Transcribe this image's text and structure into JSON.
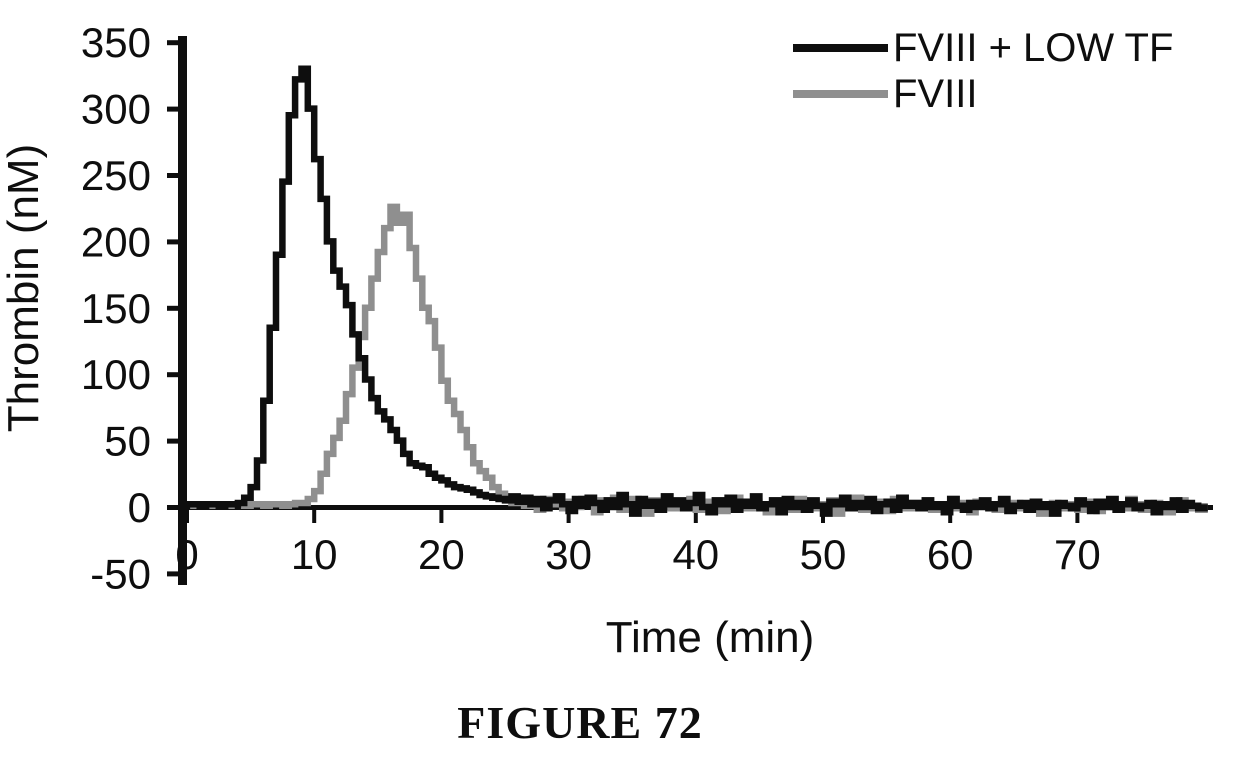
{
  "figure": {
    "caption": "FIGURE 72"
  },
  "legend": {
    "position": "top-right"
  },
  "chart_data": {
    "type": "line",
    "line_style": "step",
    "title": "",
    "xlabel": "Time (min)",
    "ylabel": "Thrombin (nM)",
    "xlim": [
      0,
      80
    ],
    "ylim": [
      -50,
      350
    ],
    "xticks": [
      0,
      10,
      20,
      30,
      40,
      50,
      60,
      70
    ],
    "yticks": [
      -50,
      0,
      50,
      100,
      150,
      200,
      250,
      300,
      350
    ],
    "grid": false,
    "axis_color": "#0e0e0e",
    "x_start": 0,
    "x_step": 0.5,
    "series": [
      {
        "name": "FVIII + LOW TF",
        "color": "#0e0e0e",
        "values": [
          2,
          2,
          1,
          2,
          2,
          1,
          2,
          2,
          3,
          7,
          15,
          35,
          80,
          135,
          190,
          245,
          295,
          322,
          330,
          300,
          262,
          232,
          200,
          178,
          166,
          152,
          130,
          112,
          96,
          82,
          72,
          66,
          58,
          50,
          40,
          33,
          31,
          30,
          25,
          22,
          20,
          17,
          15,
          14,
          13,
          11,
          9,
          8,
          7,
          6,
          5,
          8,
          4,
          7,
          2,
          6,
          -1,
          5,
          8,
          2,
          -3,
          6,
          1,
          7,
          3,
          -2,
          5,
          0,
          9,
          2,
          -5,
          6,
          1,
          4,
          -2,
          8,
          2,
          5,
          -1,
          3,
          9,
          0,
          -4,
          5,
          2,
          7,
          -2,
          4,
          1,
          8,
          -1,
          2,
          5,
          -4,
          6,
          0,
          3,
          -2,
          5,
          1,
          -5,
          4,
          2,
          7,
          -1,
          3,
          0,
          6,
          -3,
          2,
          4,
          -2,
          7,
          1,
          3,
          -1,
          5,
          0,
          2,
          -4,
          6,
          1,
          -2,
          3,
          0,
          5,
          -1,
          2,
          6,
          -3,
          1,
          3,
          -2,
          4,
          0,
          2,
          -5,
          3,
          1,
          -1,
          5,
          2,
          -3,
          4,
          0,
          6,
          -2,
          2,
          5,
          -1,
          1,
          3,
          -4,
          2,
          0,
          5,
          -2,
          3,
          1,
          -1,
          2
        ]
      },
      {
        "name": "FVIII",
        "color": "#8f8f8f",
        "values": [
          2,
          1,
          2,
          2,
          1,
          2,
          1,
          2,
          2,
          1,
          2,
          2,
          1,
          2,
          2,
          1,
          2,
          3,
          3,
          6,
          12,
          25,
          40,
          52,
          65,
          85,
          105,
          128,
          150,
          172,
          192,
          210,
          226,
          214,
          220,
          195,
          172,
          150,
          140,
          120,
          95,
          80,
          70,
          58,
          45,
          33,
          27,
          22,
          15,
          10,
          6,
          3,
          7,
          1,
          5,
          -2,
          6,
          2,
          8,
          -1,
          4,
          0,
          6,
          2,
          -4,
          5,
          1,
          7,
          -2,
          3,
          6,
          0,
          -5,
          5,
          2,
          8,
          -1,
          3,
          1,
          6,
          -2,
          4,
          0,
          5,
          -3,
          2,
          7,
          1,
          -1,
          4,
          2,
          -4,
          5,
          0,
          3,
          -2,
          6,
          1,
          4,
          -1,
          2,
          5,
          -5,
          3,
          1,
          7,
          -2,
          2,
          0,
          4,
          -3,
          6,
          2,
          -1,
          3,
          1,
          5,
          -2,
          2,
          0,
          6,
          -1,
          3,
          -4,
          4,
          1,
          2,
          -2,
          5,
          0,
          3,
          -1,
          1,
          4,
          -5,
          2,
          3,
          -1,
          0,
          2,
          -2,
          4,
          1,
          -3,
          3,
          0,
          2,
          -1,
          6,
          2,
          -2,
          1,
          3,
          0,
          -4,
          2,
          5,
          -1,
          1,
          -2,
          3
        ]
      }
    ]
  }
}
